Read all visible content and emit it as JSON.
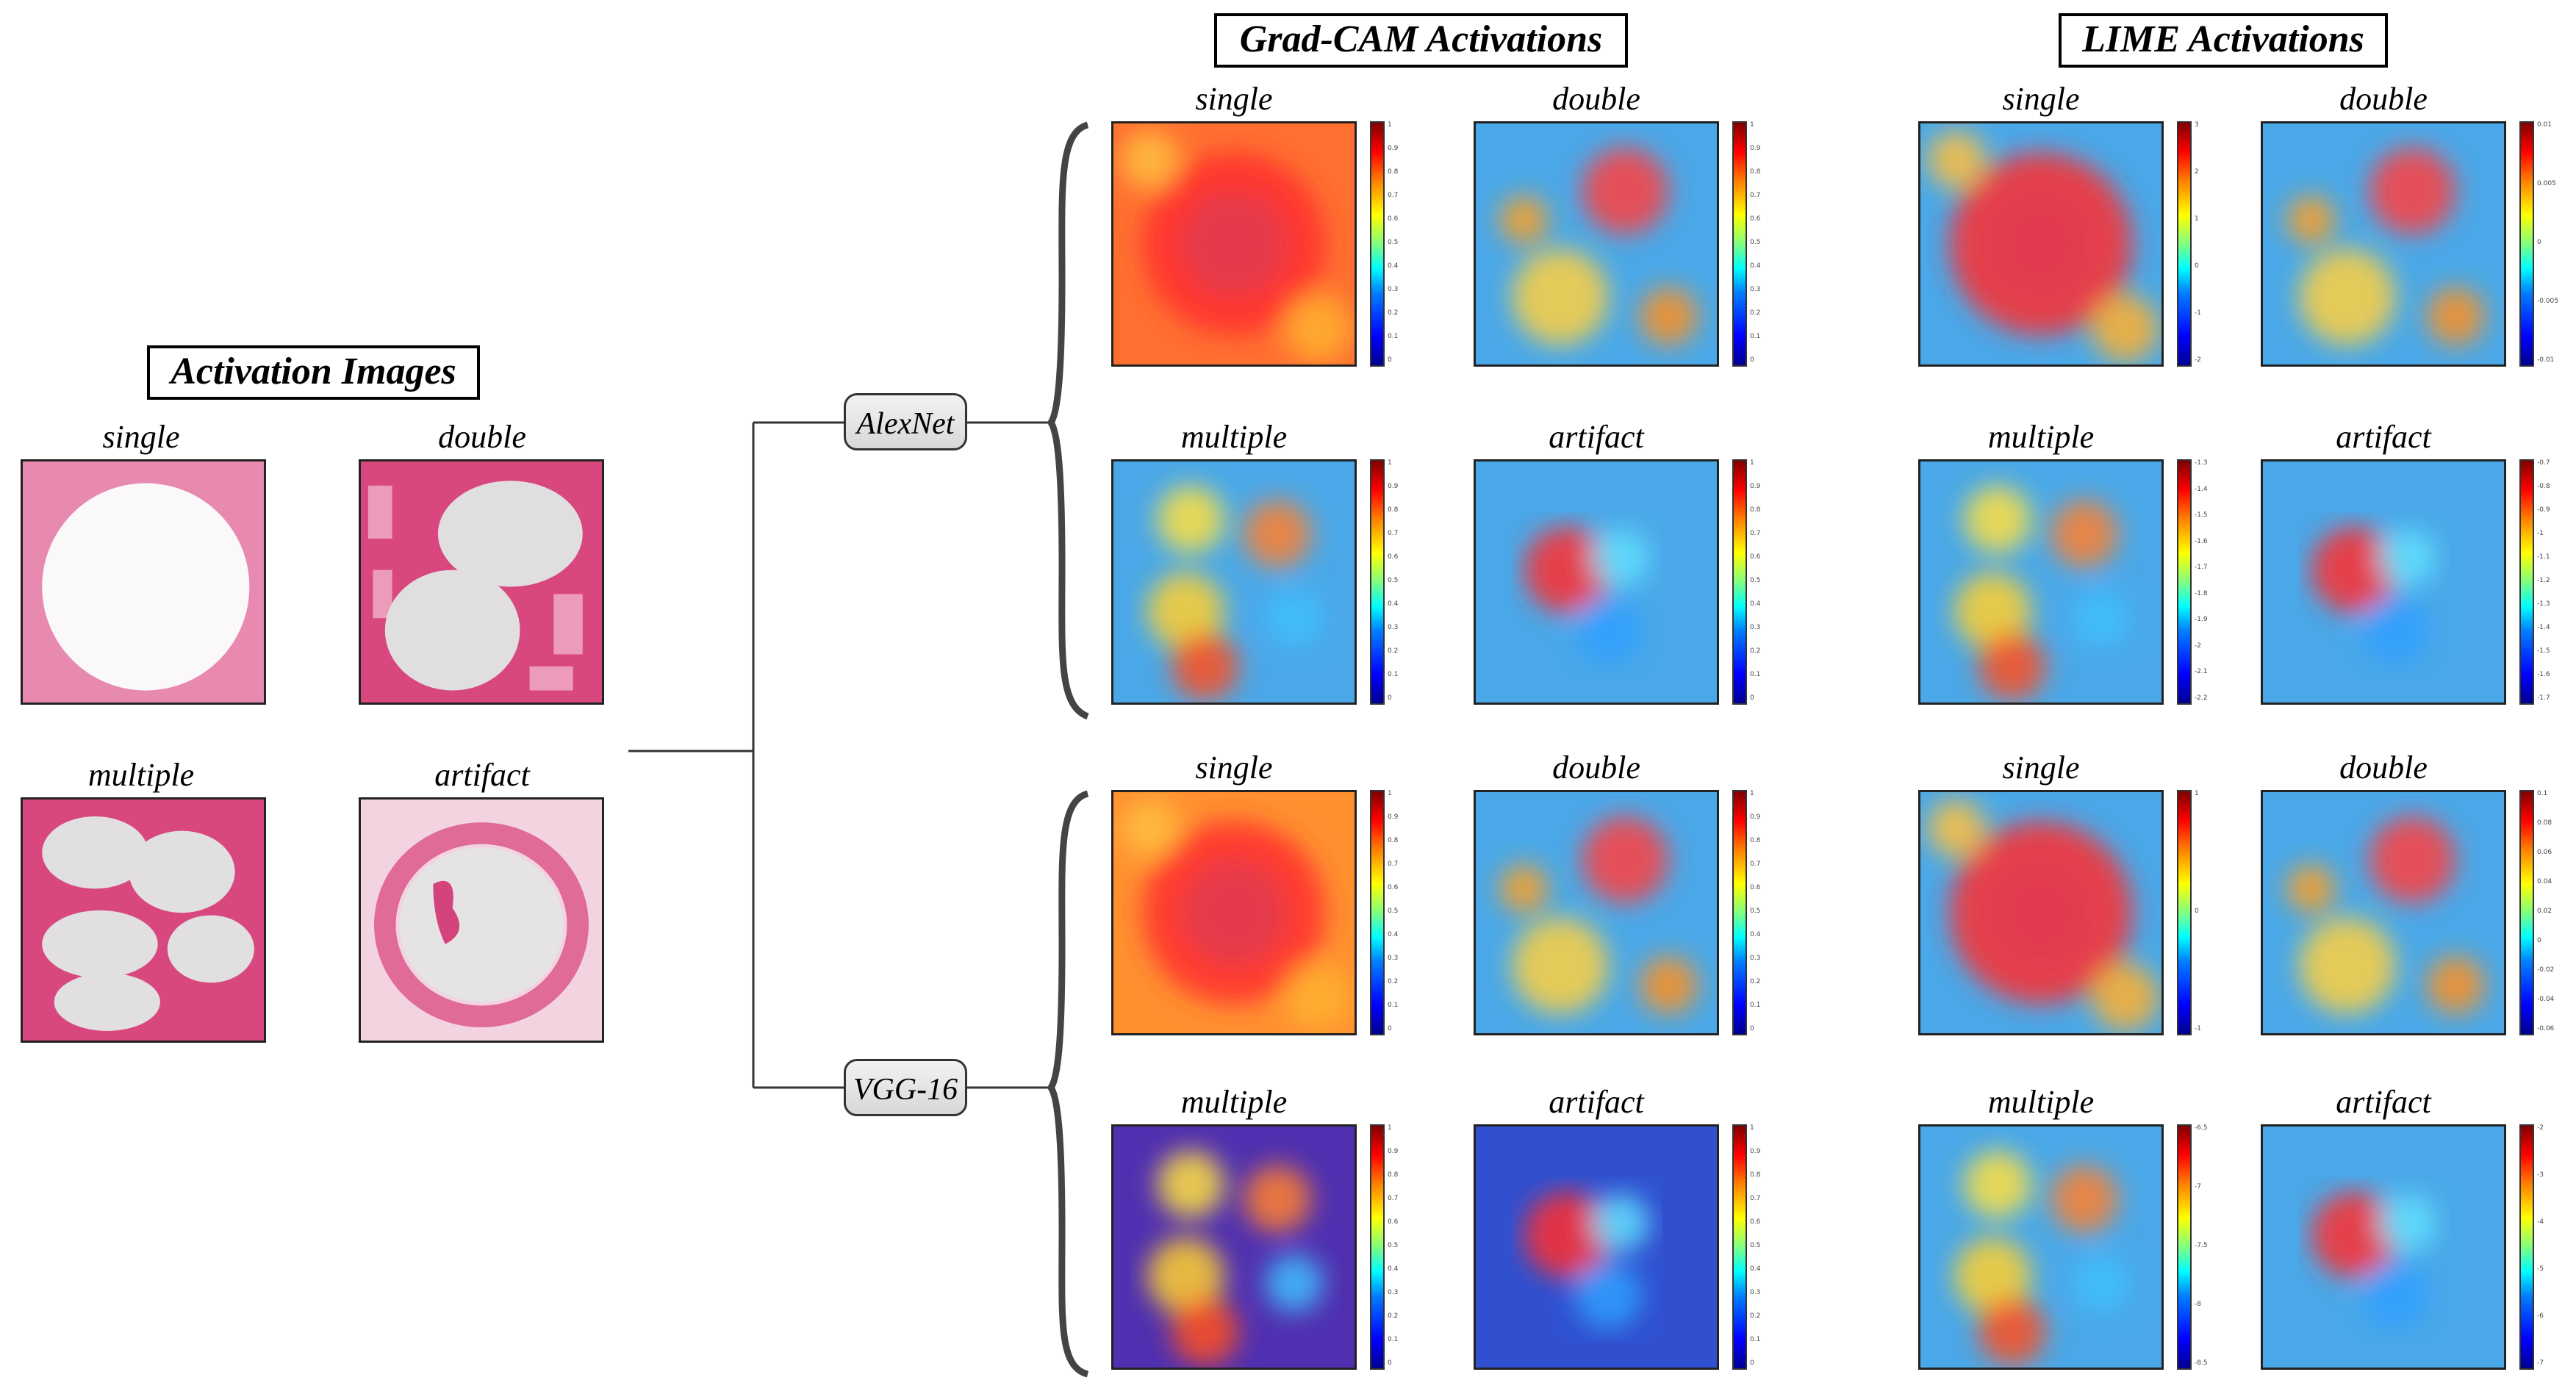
{
  "titles": {
    "activation": "Activation Images",
    "gradcam": "Grad-CAM Activations",
    "lime": "LIME Activations"
  },
  "models": {
    "alexnet": "AlexNet",
    "vgg": "VGG-16"
  },
  "labels": {
    "single": "single",
    "double": "double",
    "multiple": "multiple",
    "artifact": "artifact"
  },
  "colorbars": {
    "gc_alex_single": [
      "1",
      "0.9",
      "0.8",
      "0.7",
      "0.6",
      "0.5",
      "0.4",
      "0.3",
      "0.2",
      "0.1",
      "0"
    ],
    "gc_alex_double": [
      "1",
      "0.9",
      "0.8",
      "0.7",
      "0.6",
      "0.5",
      "0.4",
      "0.3",
      "0.2",
      "0.1",
      "0"
    ],
    "gc_alex_multiple": [
      "1",
      "0.9",
      "0.8",
      "0.7",
      "0.6",
      "0.5",
      "0.4",
      "0.3",
      "0.2",
      "0.1",
      "0"
    ],
    "gc_alex_artifact": [
      "1",
      "0.9",
      "0.8",
      "0.7",
      "0.6",
      "0.5",
      "0.4",
      "0.3",
      "0.2",
      "0.1",
      "0"
    ],
    "gc_vgg_single": [
      "1",
      "0.9",
      "0.8",
      "0.7",
      "0.6",
      "0.5",
      "0.4",
      "0.3",
      "0.2",
      "0.1",
      "0"
    ],
    "gc_vgg_double": [
      "1",
      "0.9",
      "0.8",
      "0.7",
      "0.6",
      "0.5",
      "0.4",
      "0.3",
      "0.2",
      "0.1",
      "0"
    ],
    "gc_vgg_multiple": [
      "1",
      "0.9",
      "0.8",
      "0.7",
      "0.6",
      "0.5",
      "0.4",
      "0.3",
      "0.2",
      "0.1",
      "0"
    ],
    "gc_vgg_artifact": [
      "1",
      "0.9",
      "0.8",
      "0.7",
      "0.6",
      "0.5",
      "0.4",
      "0.3",
      "0.2",
      "0.1",
      "0"
    ],
    "lime_alex_single": [
      "3",
      "2",
      "1",
      "0",
      "-1",
      "-2"
    ],
    "lime_alex_double": [
      "0.01",
      "0.005",
      "0",
      "-0.005",
      "-0.01"
    ],
    "lime_alex_multiple": [
      "-1.3",
      "-1.4",
      "-1.5",
      "-1.6",
      "-1.7",
      "-1.8",
      "-1.9",
      "-2",
      "-2.1",
      "-2.2"
    ],
    "lime_alex_artifact": [
      "-0.7",
      "-0.8",
      "-0.9",
      "-1",
      "-1.1",
      "-1.2",
      "-1.3",
      "-1.4",
      "-1.5",
      "-1.6",
      "-1.7"
    ],
    "lime_vgg_single": [
      "1",
      "0",
      "-1"
    ],
    "lime_vgg_double": [
      "0.1",
      "0.08",
      "0.06",
      "0.04",
      "0.02",
      "0",
      "-0.02",
      "-0.04",
      "-0.06"
    ],
    "lime_vgg_multiple": [
      "-6.5",
      "-7",
      "-7.5",
      "-8",
      "-8.5"
    ],
    "lime_vgg_artifact": [
      "-2",
      "-3",
      "-4",
      "-5",
      "-6",
      "-7"
    ]
  }
}
